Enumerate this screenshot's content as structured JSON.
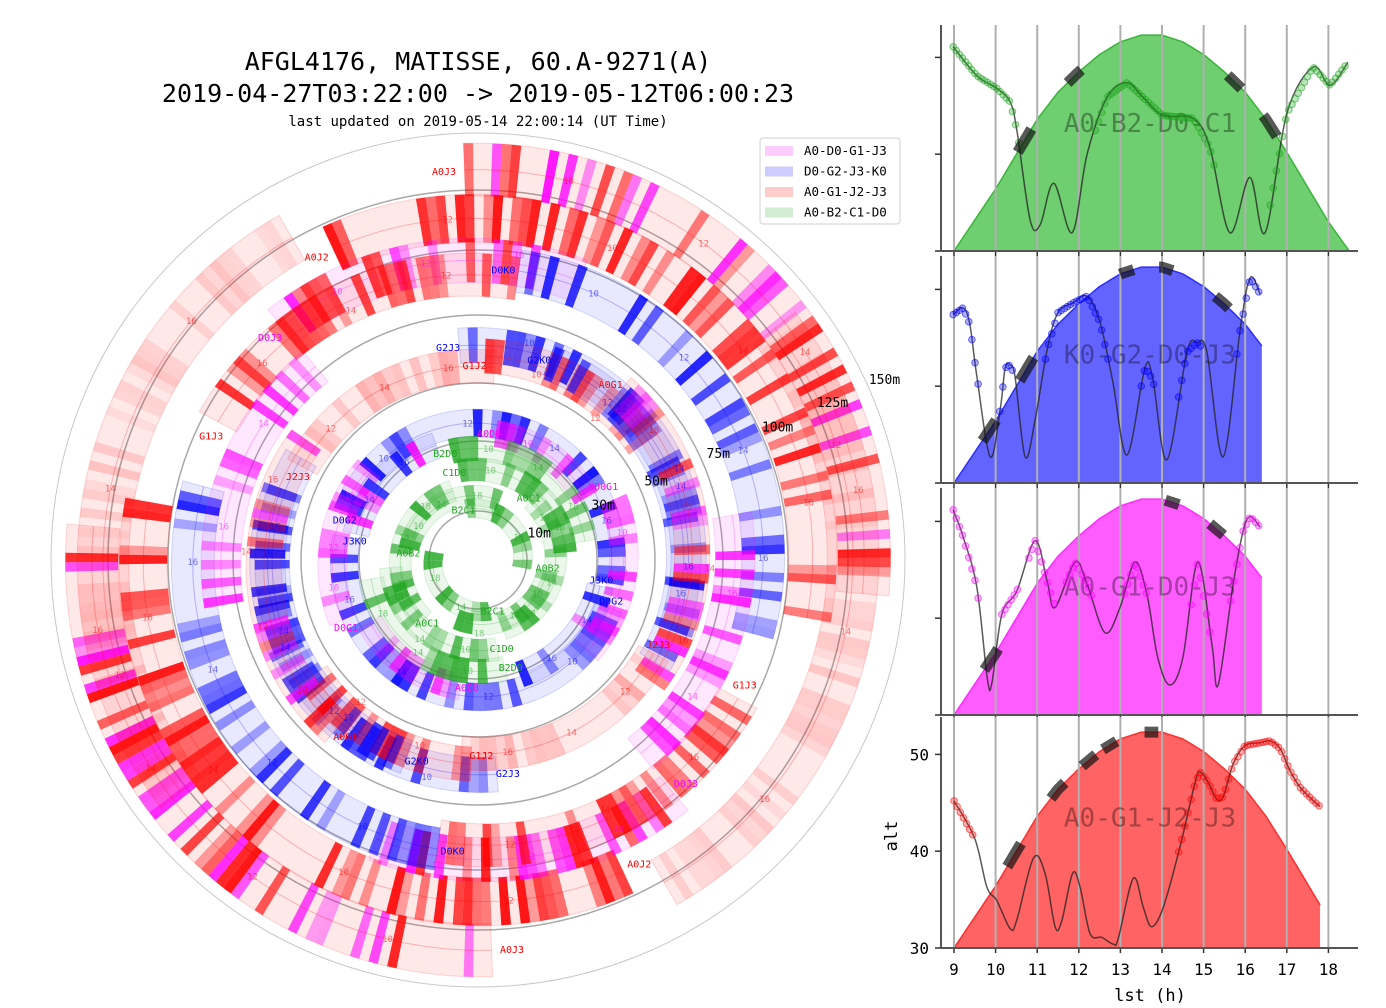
{
  "chart_data": [
    {
      "type": "polar-uv-tracks",
      "title": "AFGL4176, MATISSE, 60.A-9271(A)",
      "subtitle": "2019-04-27T03:22:00 -> 2019-05-12T06:00:23",
      "updated": "last updated on 2019-05-14 22:00:14 (UT Time)",
      "rings": [
        {
          "value": 10,
          "label": "10m"
        },
        {
          "value": 30,
          "label": "30m"
        },
        {
          "value": 50,
          "label": "50m"
        },
        {
          "value": 75,
          "label": "75m"
        },
        {
          "value": 100,
          "label": "100m"
        },
        {
          "value": 125,
          "label": "125m"
        },
        {
          "value": 150,
          "label": "150m"
        }
      ],
      "legend": {
        "placement": "top-right",
        "entries": [
          {
            "label": "A0-D0-G1-J3",
            "config": "mag"
          },
          {
            "label": "D0-G2-J3-K0",
            "config": "blue"
          },
          {
            "label": "A0-G1-J2-J3",
            "config": "red"
          },
          {
            "label": "A0-B2-C1-D0",
            "config": "green"
          }
        ]
      },
      "colors": {
        "mag": "#ff00ff",
        "blue": "#0000ff",
        "red": "#ff0000",
        "green": "#1fa51f"
      },
      "tracks": [
        {
          "label": "A0J3",
          "configs": [
            "red",
            "mag"
          ],
          "r": [
            134,
            132
          ],
          "angles": [
            -2,
            95
          ],
          "hours": [
            "10",
            "12",
            "14",
            "16"
          ],
          "strength": 0.9
        },
        {
          "configs": [
            "red"
          ],
          "r": [
            128,
            126
          ],
          "angles": [
            232,
            330
          ],
          "hours": [
            "12",
            "14",
            "16"
          ],
          "strength": 0.15
        },
        {
          "label": "A0J2",
          "configs": [
            "red"
          ],
          "r": [
            114,
            110
          ],
          "angles": [
            -25,
            100
          ],
          "hours": [
            "12",
            "10",
            "14",
            "16"
          ],
          "strength": 0.9
        },
        {
          "label": "D0J3",
          "configs": [
            "mag",
            "red"
          ],
          "r": [
            98,
            95
          ],
          "angles": [
            -40,
            20
          ],
          "hours": [
            "10",
            "12",
            "16"
          ],
          "strength": 0.8
        },
        {
          "label": "G1J3",
          "configs": [
            "red"
          ],
          "r": [
            94,
            90
          ],
          "angles": [
            -62,
            8
          ],
          "hours": [
            "16",
            "14",
            "12"
          ],
          "strength": 0.8
        },
        {
          "label": "D0K0",
          "configs": [
            "blue"
          ],
          "r": [
            93,
            90
          ],
          "angles": [
            8,
            105
          ],
          "hours": [
            "10",
            "12",
            "14",
            "16"
          ],
          "strength": 0.8
        },
        {
          "configs": [
            "mag"
          ],
          "r": [
            80,
            78
          ],
          "angles": [
            -100,
            -40
          ],
          "hours": [
            "16",
            "14"
          ],
          "strength": 0.8
        },
        {
          "label": "G2J3",
          "configs": [
            "blue"
          ],
          "r": [
            64,
            62
          ],
          "angles": [
            -5,
            110
          ],
          "hours": [
            "10",
            "12",
            "14",
            "16"
          ],
          "strength": 0.8
        },
        {
          "label": "G1J2",
          "configs": [
            "red"
          ],
          "r": [
            60,
            59
          ],
          "angles": [
            2,
            55
          ],
          "hours": [
            "10",
            "12"
          ],
          "strength": 0.7
        },
        {
          "label": "G2K0",
          "configs": [
            "blue"
          ],
          "r": [
            62,
            60
          ],
          "angles": [
            20,
            120
          ],
          "hours": [
            "12",
            "14",
            "16"
          ],
          "strength": 0.7
        },
        {
          "label": "A0G1",
          "configs": [
            "red",
            "mag"
          ],
          "r": [
            66,
            62
          ],
          "angles": [
            40,
            125
          ],
          "hours": [
            "10",
            "12",
            "14",
            "16"
          ],
          "strength": 0.8
        },
        {
          "label": "J2J3",
          "configs": [
            "red"
          ],
          "r": [
            58,
            56
          ],
          "angles": [
            -62,
            5
          ],
          "hours": [
            "12",
            "14",
            "16"
          ],
          "strength": 0.25
        },
        {
          "label": "D0G2",
          "configs": [
            "blue"
          ],
          "r": [
            37,
            35
          ],
          "angles": [
            -70,
            100
          ],
          "hours": [
            "10",
            "12",
            "14",
            "16"
          ],
          "strength": 0.85
        },
        {
          "label": "D0G1",
          "configs": [
            "mag"
          ],
          "r": [
            40,
            38
          ],
          "angles": [
            66,
            130
          ],
          "hours": [
            "10",
            "12",
            "16"
          ],
          "strength": 0.7
        },
        {
          "label": "J3K0",
          "configs": [
            "blue",
            "mag"
          ],
          "r": [
            32,
            31
          ],
          "angles": [
            -78,
            -20
          ],
          "hours": [
            "14",
            "16"
          ],
          "strength": 0.8
        },
        {
          "label": "A0D0",
          "configs": [
            "mag"
          ],
          "r": [
            33,
            32
          ],
          "angles": [
            8,
            60
          ],
          "hours": [
            "10",
            "14"
          ],
          "strength": 0.7
        },
        {
          "label": "B2D0",
          "configs": [
            "green"
          ],
          "r": [
            28,
            27
          ],
          "angles": [
            -14,
            80
          ],
          "hours": [
            "10",
            "14",
            "18"
          ],
          "strength": 0.8
        },
        {
          "label": "C1D0",
          "configs": [
            "green"
          ],
          "r": [
            22,
            21
          ],
          "angles": [
            -12,
            85
          ],
          "hours": [
            "10",
            "14",
            "18"
          ],
          "strength": 0.8
        },
        {
          "label": "A0C1",
          "configs": [
            "green"
          ],
          "r": [
            19,
            17
          ],
          "angles": [
            42,
            160
          ],
          "hours": [
            "10",
            "14",
            "18"
          ],
          "strength": 0.8
        },
        {
          "label": "A0B2",
          "configs": [
            "green"
          ],
          "r": [
            16,
            14
          ],
          "angles": [
            99,
            200
          ],
          "hours": [
            "10",
            "14",
            "18"
          ],
          "strength": 0.8
        },
        {
          "label": "B2C1",
          "configs": [
            "green"
          ],
          "r": [
            11,
            9
          ],
          "angles": [
            -13,
            100
          ],
          "hours": [
            "14",
            "18"
          ],
          "strength": 0.8
        }
      ]
    },
    {
      "type": "area",
      "xlabel": "lst (h)",
      "ylabel": "alt",
      "xlim": [
        8.7,
        18.75
      ],
      "ylim": [
        30,
        53.4
      ],
      "xticks": [
        "9",
        "10",
        "11",
        "12",
        "13",
        "14",
        "15",
        "16",
        "17",
        "18"
      ],
      "yticks": [
        "30",
        "40",
        "50"
      ],
      "grid": "vertical",
      "alt_curve": {
        "x": [
          9,
          9.5,
          10,
          10.5,
          11,
          11.5,
          12,
          12.5,
          13,
          13.5,
          14,
          14.5,
          15,
          15.5,
          16,
          16.5,
          17,
          17.5,
          18,
          18.5
        ],
        "y": [
          30,
          33.2,
          36.4,
          40,
          43.6,
          46.4,
          48.5,
          50.3,
          51.6,
          52.3,
          52.3,
          51.6,
          50.3,
          48.5,
          46.4,
          43.6,
          40.2,
          36.6,
          33,
          30
        ]
      },
      "panels": [
        {
          "name": "A0-B2-D0-C1",
          "config": "green",
          "fill": "#6fce6f",
          "edge": "#38b538",
          "end": 18.5,
          "line": {
            "x": [
              8.98,
              9.55,
              10.03,
              10.35,
              10.51,
              10.83,
              11.07,
              11.4,
              11.84,
              12.2,
              12.68,
              13.16,
              13.54,
              14.02,
              14.75,
              15.15,
              15.63,
              16.11,
              16.48,
              17.0,
              17.63,
              18.04,
              18.47
            ],
            "y": [
              51.1,
              48.1,
              46.8,
              45.4,
              42.5,
              33.2,
              32.7,
              37,
              31.9,
              40,
              45.9,
              47.4,
              45.9,
              44,
              43.7,
              40.7,
              31.9,
              37.6,
              31.9,
              44.2,
              49,
              47.1,
              49.5
            ]
          },
          "dot_ranges": [
            [
              8.98,
              10.6
            ],
            [
              12.4,
              15.3
            ],
            [
              16.6,
              18.47
            ]
          ],
          "obs": [
            10.7,
            11.9,
            15.75,
            16.6
          ]
        },
        {
          "name": "K0-G2-D0-J3",
          "config": "blue",
          "fill": "#6363ff",
          "edge": "#2f2fff",
          "end": 16.4,
          "line": {
            "x": [
              8.98,
              9.22,
              9.38,
              9.55,
              9.87,
              10.11,
              10.23,
              10.35,
              10.47,
              10.71,
              10.95,
              11.24,
              11.5,
              11.86,
              12.2,
              12.51,
              12.82,
              13.16,
              13.59,
              13.78,
              14.12,
              14.6,
              14.84,
              15.08,
              15.47,
              15.88,
              16.12,
              16.36
            ],
            "y": [
              47.4,
              48.1,
              46.4,
              41,
              32.7,
              37.6,
              41.9,
              42.2,
              40.9,
              32.7,
              36.5,
              43.8,
              47.6,
              48.6,
              49.3,
              46.6,
              40.4,
              32.9,
              41.9,
              40.7,
              32.4,
              43.5,
              44.5,
              43.5,
              32.7,
              45.9,
              51.2,
              49.5
            ]
          },
          "dot_ranges": [
            [
              8.98,
              9.6
            ],
            [
              10.1,
              10.45
            ],
            [
              11.2,
              12.75
            ],
            [
              13.5,
              13.8
            ],
            [
              14.4,
              14.95
            ],
            [
              15.8,
              16.36
            ]
          ],
          "obs": [
            9.85,
            10.75,
            13.16,
            14.1,
            15.45
          ]
        },
        {
          "name": "A0-G1-D0-J3",
          "config": "mag",
          "fill": "#ff5cff",
          "edge": "#ff2cff",
          "end": 16.4,
          "line": {
            "x": [
              8.98,
              9.22,
              9.55,
              9.8,
              9.91,
              10.15,
              10.51,
              10.95,
              11.24,
              11.43,
              11.91,
              12.2,
              12.63,
              12.99,
              13.35,
              13.64,
              13.9,
              14.19,
              14.5,
              14.86,
              15.2,
              15.35,
              15.71,
              15.95,
              16.12,
              16.36
            ],
            "y": [
              51.2,
              48.4,
              43.2,
              33.8,
              33.3,
              40.4,
              42.8,
              48,
              43.8,
              41.1,
              45.8,
              43.5,
              38.5,
              41.1,
              45.8,
              42.4,
              35.9,
              33.1,
              35.9,
              45.8,
              37.3,
              33.1,
              43.5,
              49,
              50.5,
              49.4
            ]
          },
          "dot_ranges": [
            [
              8.98,
              9.65
            ],
            [
              10.15,
              10.55
            ],
            [
              10.8,
              11.45
            ],
            [
              11.7,
              12.3
            ],
            [
              13.1,
              13.65
            ],
            [
              14.7,
              15.15
            ],
            [
              15.65,
              16.36
            ]
          ],
          "obs": [
            9.9,
            14.25,
            15.32
          ]
        },
        {
          "name": "A0-G1-J2-J3",
          "config": "red",
          "fill": "#ff6363",
          "edge": "#ff2f2f",
          "end": 17.8,
          "line": {
            "x": [
              9,
              9.5,
              9.79,
              10.03,
              10.35,
              10.51,
              10.91,
              11.19,
              11.43,
              11.59,
              11.85,
              12.03,
              12.27,
              12.55,
              12.83,
              12.95,
              13.31,
              13.55,
              13.75,
              14.03,
              14.43,
              14.79,
              14.91,
              15.11,
              15.31,
              15.47,
              15.71,
              15.99,
              16.36,
              16.6,
              16.84,
              17.08,
              17.32,
              17.64,
              17.8
            ],
            "y": [
              45.2,
              41.3,
              36.3,
              34.9,
              32,
              32.9,
              39.3,
              37.7,
              32.2,
              32.8,
              37.7,
              36.3,
              31.5,
              31.1,
              30.4,
              31,
              37.2,
              34.2,
              32.2,
              34.2,
              40.4,
              47,
              48.2,
              47.1,
              45.4,
              45.6,
              49,
              50.9,
              51.2,
              51.4,
              50.6,
              48.3,
              46.6,
              45.2,
              44.6
            ]
          },
          "dot_ranges": [
            [
              9,
              9.5
            ],
            [
              14.4,
              17.8
            ]
          ],
          "obs": [
            10.45,
            11.5,
            12.25,
            12.75,
            13.75
          ]
        }
      ]
    }
  ]
}
